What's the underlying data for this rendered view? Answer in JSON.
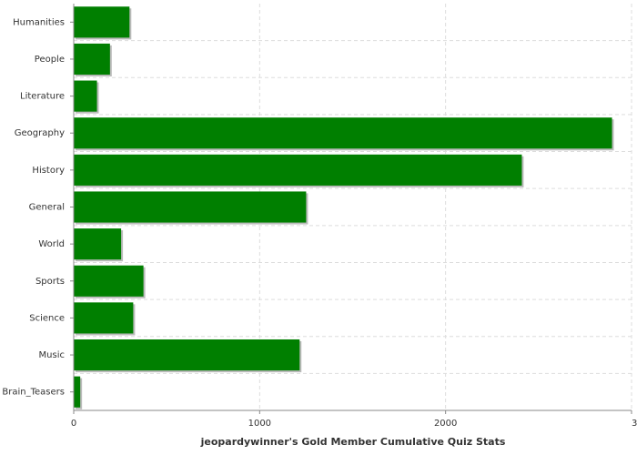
{
  "chart_data": {
    "type": "bar",
    "orientation": "horizontal",
    "x_label": "jeopardywinner's Gold Member Cumulative Quiz Stats",
    "categories": [
      "Humanities",
      "People",
      "Literature",
      "Geography",
      "History",
      "General",
      "World",
      "Sports",
      "Science",
      "Music",
      "Brain_Teasers"
    ],
    "values": [
      300,
      195,
      125,
      2895,
      2410,
      1250,
      255,
      375,
      320,
      1215,
      35
    ],
    "color": "#007f00",
    "xlim": [
      0,
      3000
    ],
    "xticks": [
      0,
      1000,
      2000,
      3000
    ],
    "grid": true
  }
}
